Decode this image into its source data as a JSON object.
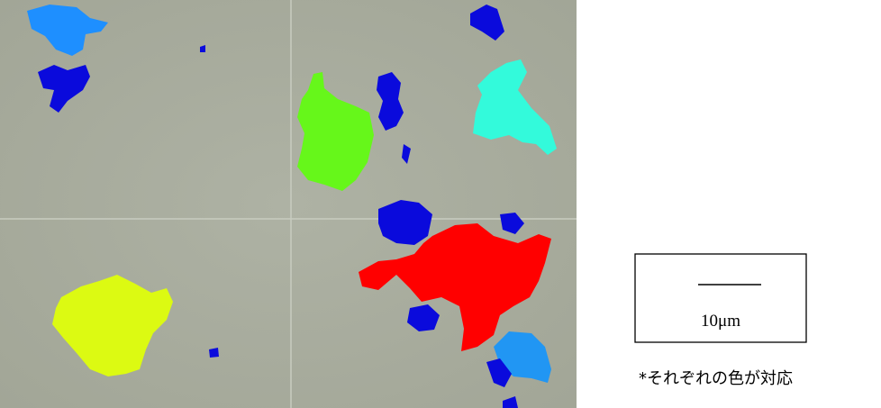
{
  "scale_bar": {
    "label": "10μm"
  },
  "note": "*それぞれの色が対応"
}
